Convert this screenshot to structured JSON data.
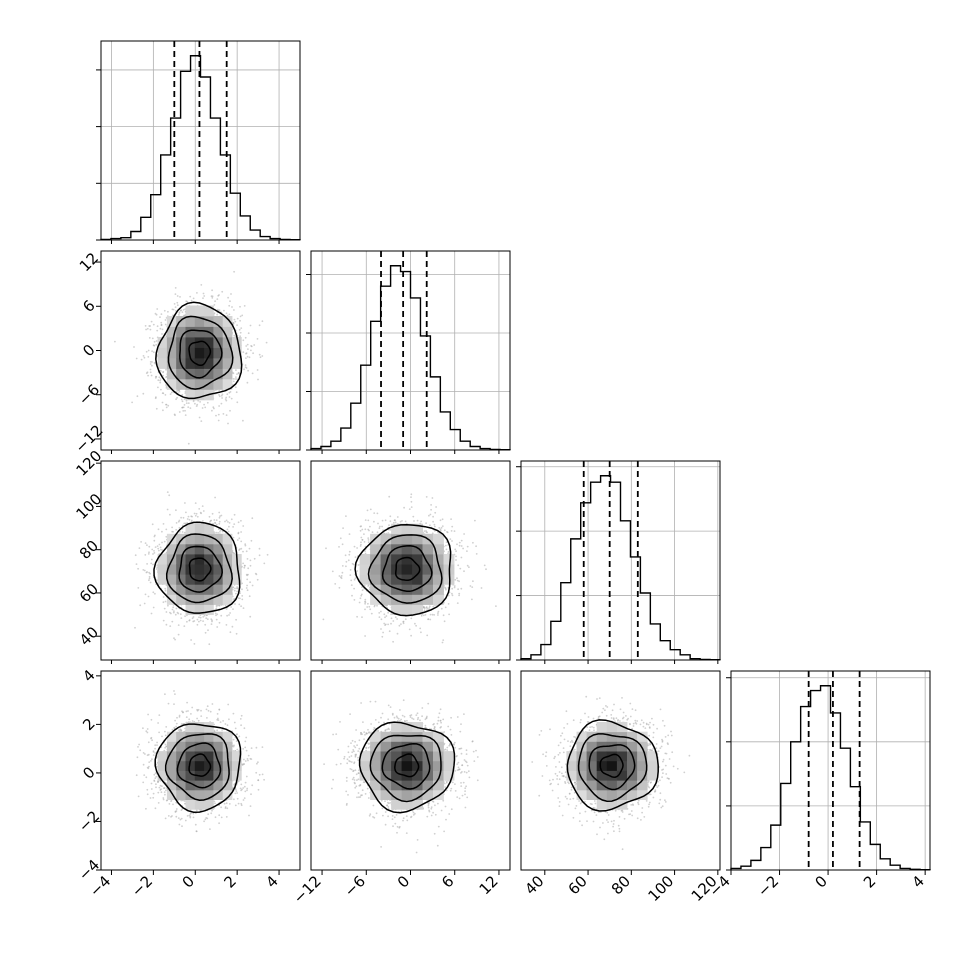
{
  "chart_data": {
    "type": "corner",
    "n_params": 4,
    "axes": [
      {
        "id": "p0",
        "range": [
          -4.5,
          5.0
        ],
        "ticks": [
          -4,
          -2,
          0,
          2,
          4
        ],
        "tick_labels": [
          "−4",
          "−2",
          "0",
          "2",
          "4"
        ]
      },
      {
        "id": "p1",
        "range": [
          -13.5,
          13.5
        ],
        "ticks": [
          -12,
          -6,
          0,
          6,
          12
        ],
        "tick_labels": [
          "−12",
          "−6",
          "0",
          "6",
          "12"
        ]
      },
      {
        "id": "p2",
        "range": [
          29,
          121
        ],
        "ticks": [
          40,
          60,
          80,
          100,
          120
        ],
        "tick_labels": [
          "40",
          "60",
          "80",
          "100",
          "120"
        ]
      },
      {
        "id": "p3",
        "range": [
          -4.0,
          4.2
        ],
        "ticks": [
          -4,
          -2,
          0,
          2,
          4
        ],
        "tick_labels": [
          "−4",
          "−2",
          "0",
          "2",
          "4"
        ]
      }
    ],
    "marginals": [
      {
        "axis": 0,
        "quantiles": [
          -1.0,
          0.2,
          1.5
        ],
        "bin_edges": [
          -4.5,
          -4.025,
          -3.55,
          -3.075,
          -2.6,
          -2.125,
          -1.65,
          -1.175,
          -0.7,
          -0.225,
          0.25,
          0.725,
          1.2,
          1.675,
          2.15,
          2.625,
          3.1,
          3.575,
          4.05,
          4.525,
          5.0
        ],
        "counts": [
          2,
          5,
          8,
          30,
          80,
          160,
          300,
          430,
          595,
          650,
          575,
          430,
          300,
          165,
          85,
          35,
          12,
          5,
          2,
          1
        ],
        "grid_y": [
          0,
          200,
          400,
          600
        ]
      },
      {
        "axis": 1,
        "quantiles": [
          -4.0,
          -1.0,
          2.2
        ],
        "bin_edges": [
          -13.5,
          -12.15,
          -10.8,
          -9.45,
          -8.1,
          -6.75,
          -5.4,
          -4.05,
          -2.7,
          -1.35,
          0.0,
          1.35,
          2.7,
          4.05,
          5.4,
          6.75,
          8.1,
          9.45,
          10.8,
          12.15,
          13.5
        ],
        "counts": [
          5,
          12,
          30,
          75,
          160,
          290,
          440,
          560,
          630,
          610,
          520,
          390,
          250,
          130,
          70,
          30,
          12,
          5,
          2,
          1
        ],
        "grid_y": [
          0,
          200,
          400,
          600
        ]
      },
      {
        "axis": 2,
        "quantiles": [
          58.0,
          70.0,
          83.0
        ],
        "bin_edges": [
          29,
          33.6,
          38.2,
          42.8,
          47.4,
          52.0,
          56.6,
          61.2,
          65.8,
          70.4,
          75.0,
          79.6,
          84.2,
          88.8,
          93.4,
          98.0,
          102.6,
          107.2,
          111.8,
          116.4,
          121
        ],
        "counts": [
          5,
          20,
          60,
          150,
          300,
          470,
          610,
          690,
          715,
          690,
          540,
          400,
          260,
          140,
          75,
          40,
          20,
          5,
          2,
          1
        ],
        "grid_y": [
          0,
          250,
          500,
          750
        ]
      },
      {
        "axis": 3,
        "quantiles": [
          -0.8,
          0.2,
          1.3
        ],
        "bin_edges": [
          -4.0,
          -3.59,
          -3.18,
          -2.77,
          -2.36,
          -1.95,
          -1.54,
          -1.13,
          -0.72,
          -0.31,
          0.1,
          0.51,
          0.92,
          1.33,
          1.74,
          2.15,
          2.56,
          2.97,
          3.38,
          3.79,
          4.2
        ],
        "counts": [
          5,
          12,
          30,
          70,
          140,
          270,
          400,
          510,
          560,
          575,
          490,
          380,
          260,
          150,
          80,
          35,
          15,
          5,
          2,
          1
        ],
        "grid_y": [
          0,
          200,
          400,
          600
        ]
      }
    ],
    "joint": [
      {
        "x_axis": 0,
        "y_axis": 1,
        "center": [
          0.2,
          -0.3
        ],
        "sigma": [
          1.0,
          3.2
        ]
      },
      {
        "x_axis": 0,
        "y_axis": 2,
        "center": [
          0.2,
          71
        ],
        "sigma": [
          1.0,
          10.5
        ]
      },
      {
        "x_axis": 1,
        "y_axis": 2,
        "center": [
          -0.5,
          71
        ],
        "sigma": [
          3.2,
          10.5
        ]
      },
      {
        "x_axis": 0,
        "y_axis": 3,
        "center": [
          0.2,
          0.3
        ],
        "sigma": [
          1.0,
          0.9
        ]
      },
      {
        "x_axis": 1,
        "y_axis": 3,
        "center": [
          -0.5,
          0.3
        ],
        "sigma": [
          3.2,
          0.9
        ]
      },
      {
        "x_axis": 2,
        "y_axis": 3,
        "center": [
          71,
          0.3
        ],
        "sigma": [
          10.5,
          0.9
        ]
      }
    ],
    "contour_levels_sigma": [
      0.5,
      1.0,
      1.5,
      2.0
    ],
    "grid": true,
    "colors": {
      "histogram": "#000000",
      "quantile_line": "#000000",
      "points": "#aaaaaa",
      "density_max": "#000000",
      "grid": "#b0b0b0"
    }
  }
}
